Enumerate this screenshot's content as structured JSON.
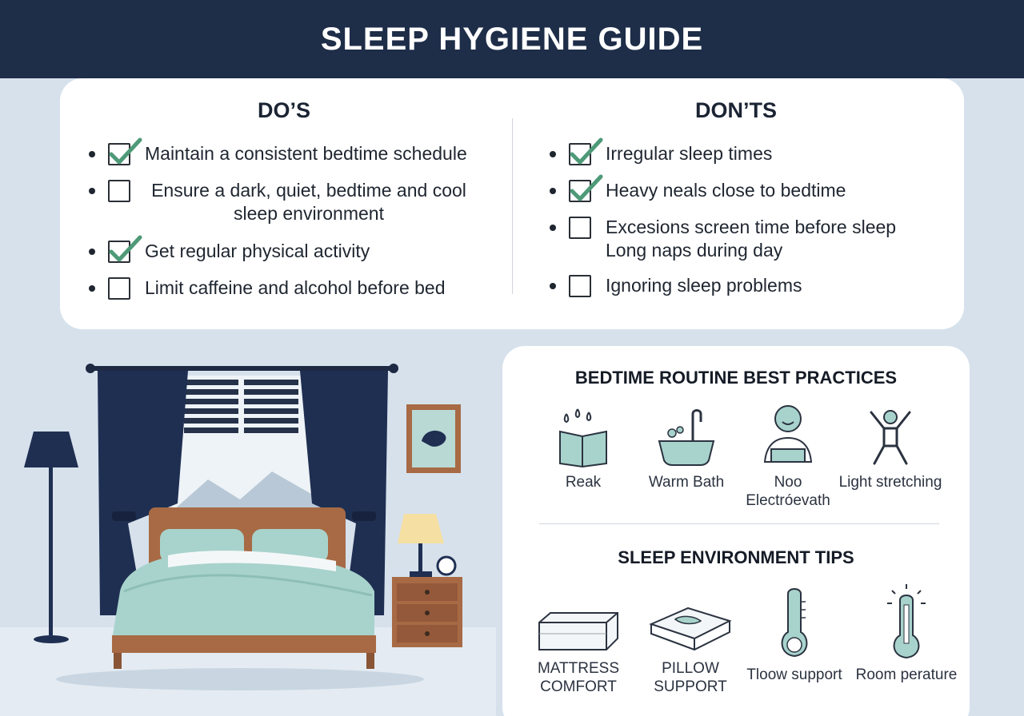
{
  "header": {
    "title": "SLEEP HYGIENE GUIDE"
  },
  "dos": {
    "title": "DO’S",
    "items": [
      {
        "text": "Maintain a consistent bedtime schedule",
        "checked": true
      },
      {
        "text": "Ensure a dark, quiet, bedtime and cool sleep environment",
        "checked": false
      },
      {
        "text": "Get regular physical activity",
        "checked": true
      },
      {
        "text": "Limit caffeine and alcohol before bed",
        "checked": false
      }
    ]
  },
  "donts": {
    "title": "DON’TS",
    "items": [
      {
        "text": "Irregular sleep times",
        "checked": true
      },
      {
        "text": "Heavy neals close to bedtime",
        "checked": true
      },
      {
        "text": "Excesions screen time before sleep\nLong naps during day",
        "checked": false
      },
      {
        "text": "Ignoring sleep problems",
        "checked": false
      }
    ]
  },
  "routine": {
    "title": "BEDTIME ROUTINE BEST PRACTICES",
    "items": [
      {
        "icon": "book-icon",
        "label": "Reak"
      },
      {
        "icon": "bathtub-icon",
        "label": "Warm Bath"
      },
      {
        "icon": "person-icon",
        "label": "Noo Electróevath"
      },
      {
        "icon": "stretching-icon",
        "label": "Light stretching"
      }
    ]
  },
  "environment": {
    "title": "SLEEP ENVIRONMENT TIPS",
    "items": [
      {
        "icon": "mattress-icon",
        "label": "MATTRESS COMFORT"
      },
      {
        "icon": "pillow-icon",
        "label": "PILLOW SUPPORT"
      },
      {
        "icon": "thermometer-icon",
        "label": "Tloow support"
      },
      {
        "icon": "thermometer-light-icon",
        "label": "Room perature"
      }
    ]
  },
  "colors": {
    "header_bg": "#1e2d48",
    "check_green": "#4e9a78",
    "curtain_navy": "#1f2f52",
    "bedding_mint": "#a8d3cc",
    "wood_brown": "#a76a45"
  }
}
